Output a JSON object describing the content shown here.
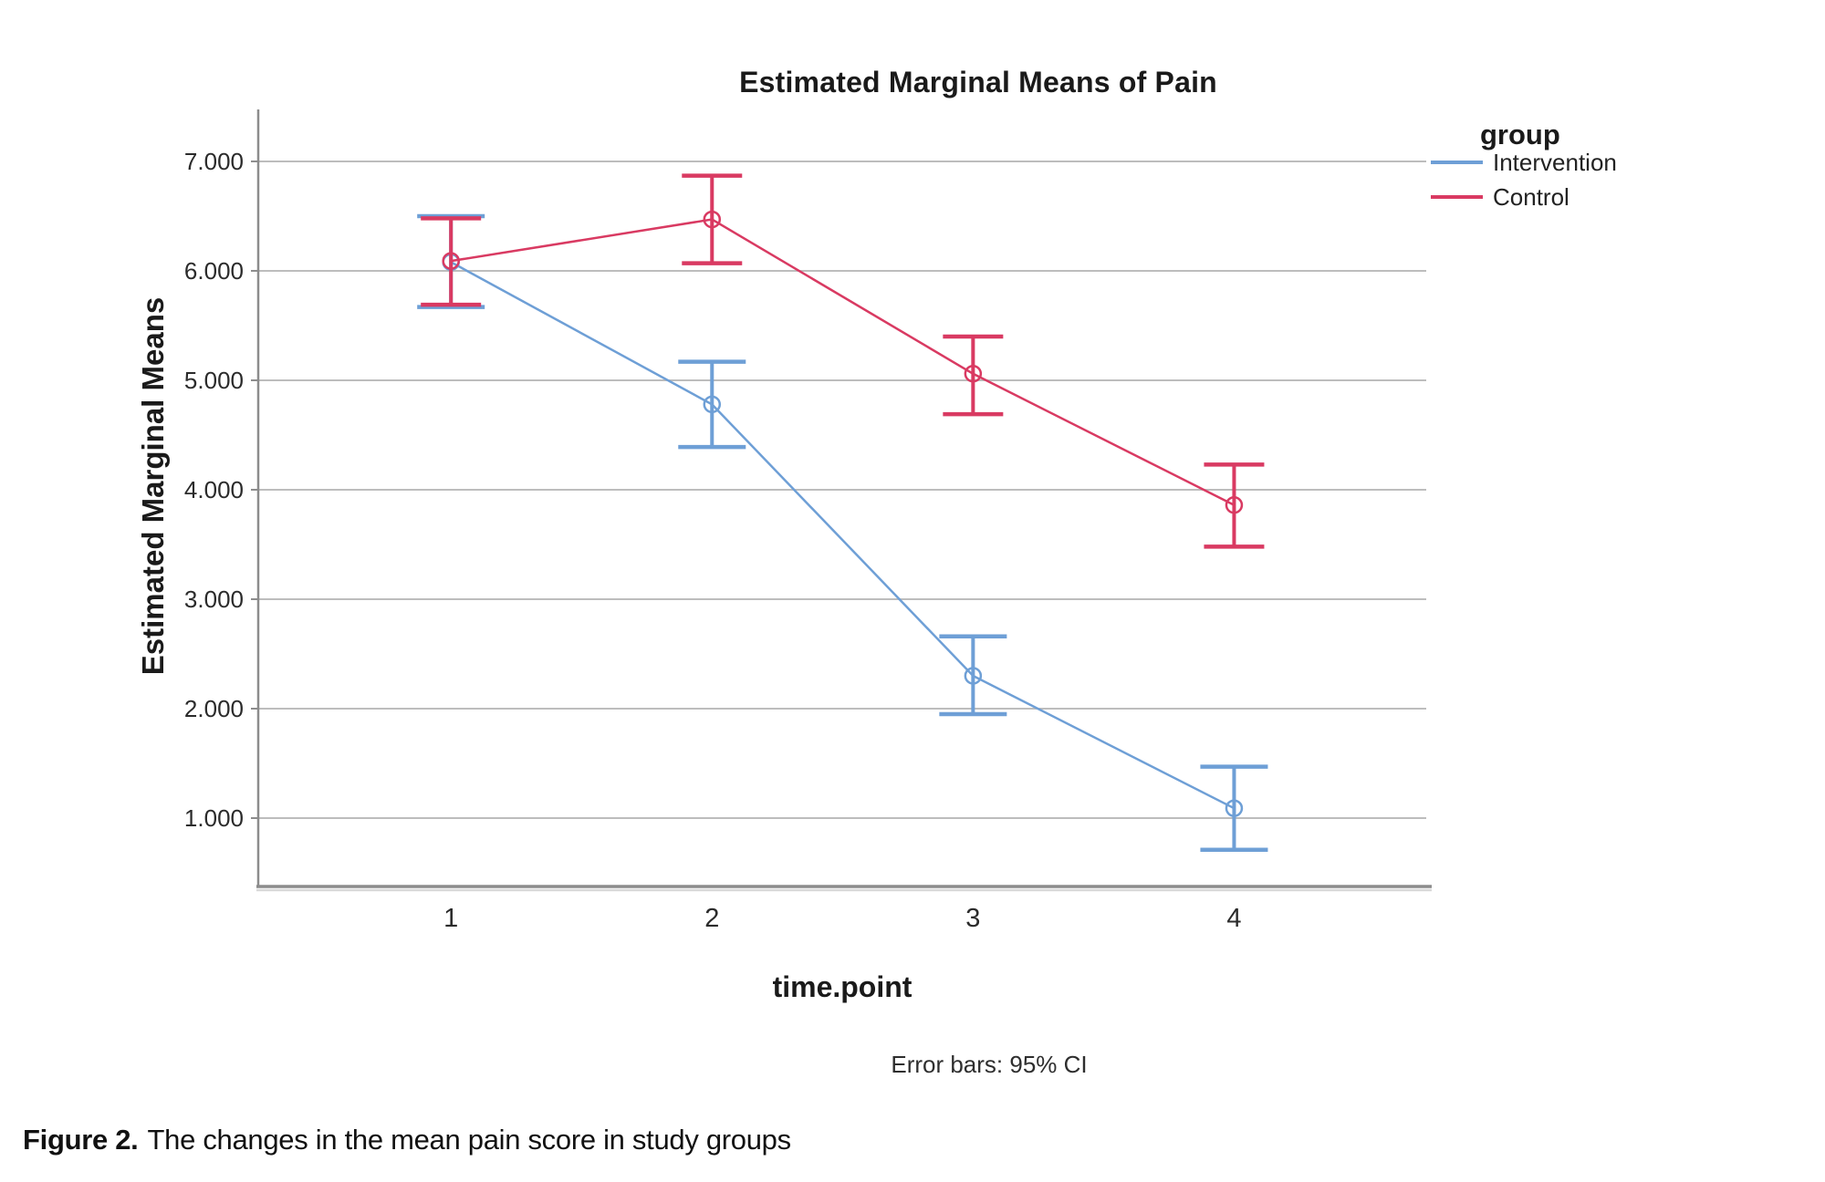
{
  "chart_data": {
    "type": "line",
    "title": "Estimated Marginal Means of Pain",
    "xlabel": "time.point",
    "ylabel": "Estimated Marginal Means",
    "footnote": "Error bars: 95% CI",
    "categories": [
      "1",
      "2",
      "3",
      "4"
    ],
    "ylim": [
      0.375,
      7.433
    ],
    "yticks": [
      1,
      2,
      3,
      4,
      5,
      6,
      7
    ],
    "ytick_labels": [
      "1.000",
      "2.000",
      "3.000",
      "4.000",
      "5.000",
      "6.000",
      "7.000"
    ],
    "grid": true,
    "legend": {
      "title": "group",
      "position": "right",
      "items": [
        {
          "label": "Intervention",
          "color": "#6E9FD6"
        },
        {
          "label": "Control",
          "color": "#D93A62"
        }
      ]
    },
    "series": [
      {
        "name": "Intervention",
        "color": "#6E9FD6",
        "values": [
          6.08,
          4.78,
          2.3,
          1.09
        ],
        "ci_low": [
          5.67,
          4.39,
          1.95,
          0.71
        ],
        "ci_high": [
          6.5,
          5.17,
          2.66,
          1.47
        ]
      },
      {
        "name": "Control",
        "color": "#D93A62",
        "values": [
          6.09,
          6.47,
          5.06,
          3.86
        ],
        "ci_low": [
          5.69,
          6.07,
          4.69,
          3.48
        ],
        "ci_high": [
          6.48,
          6.87,
          5.4,
          4.23
        ]
      }
    ],
    "colors": {
      "gridline": "#BDBDBD",
      "axis": "#8C8C8C",
      "axis_shadow": "#D9D9D9",
      "tick_text": "#2b2b2b"
    }
  },
  "caption": {
    "label": "Figure 2.",
    "text": "The changes in the mean pain score in study groups"
  }
}
